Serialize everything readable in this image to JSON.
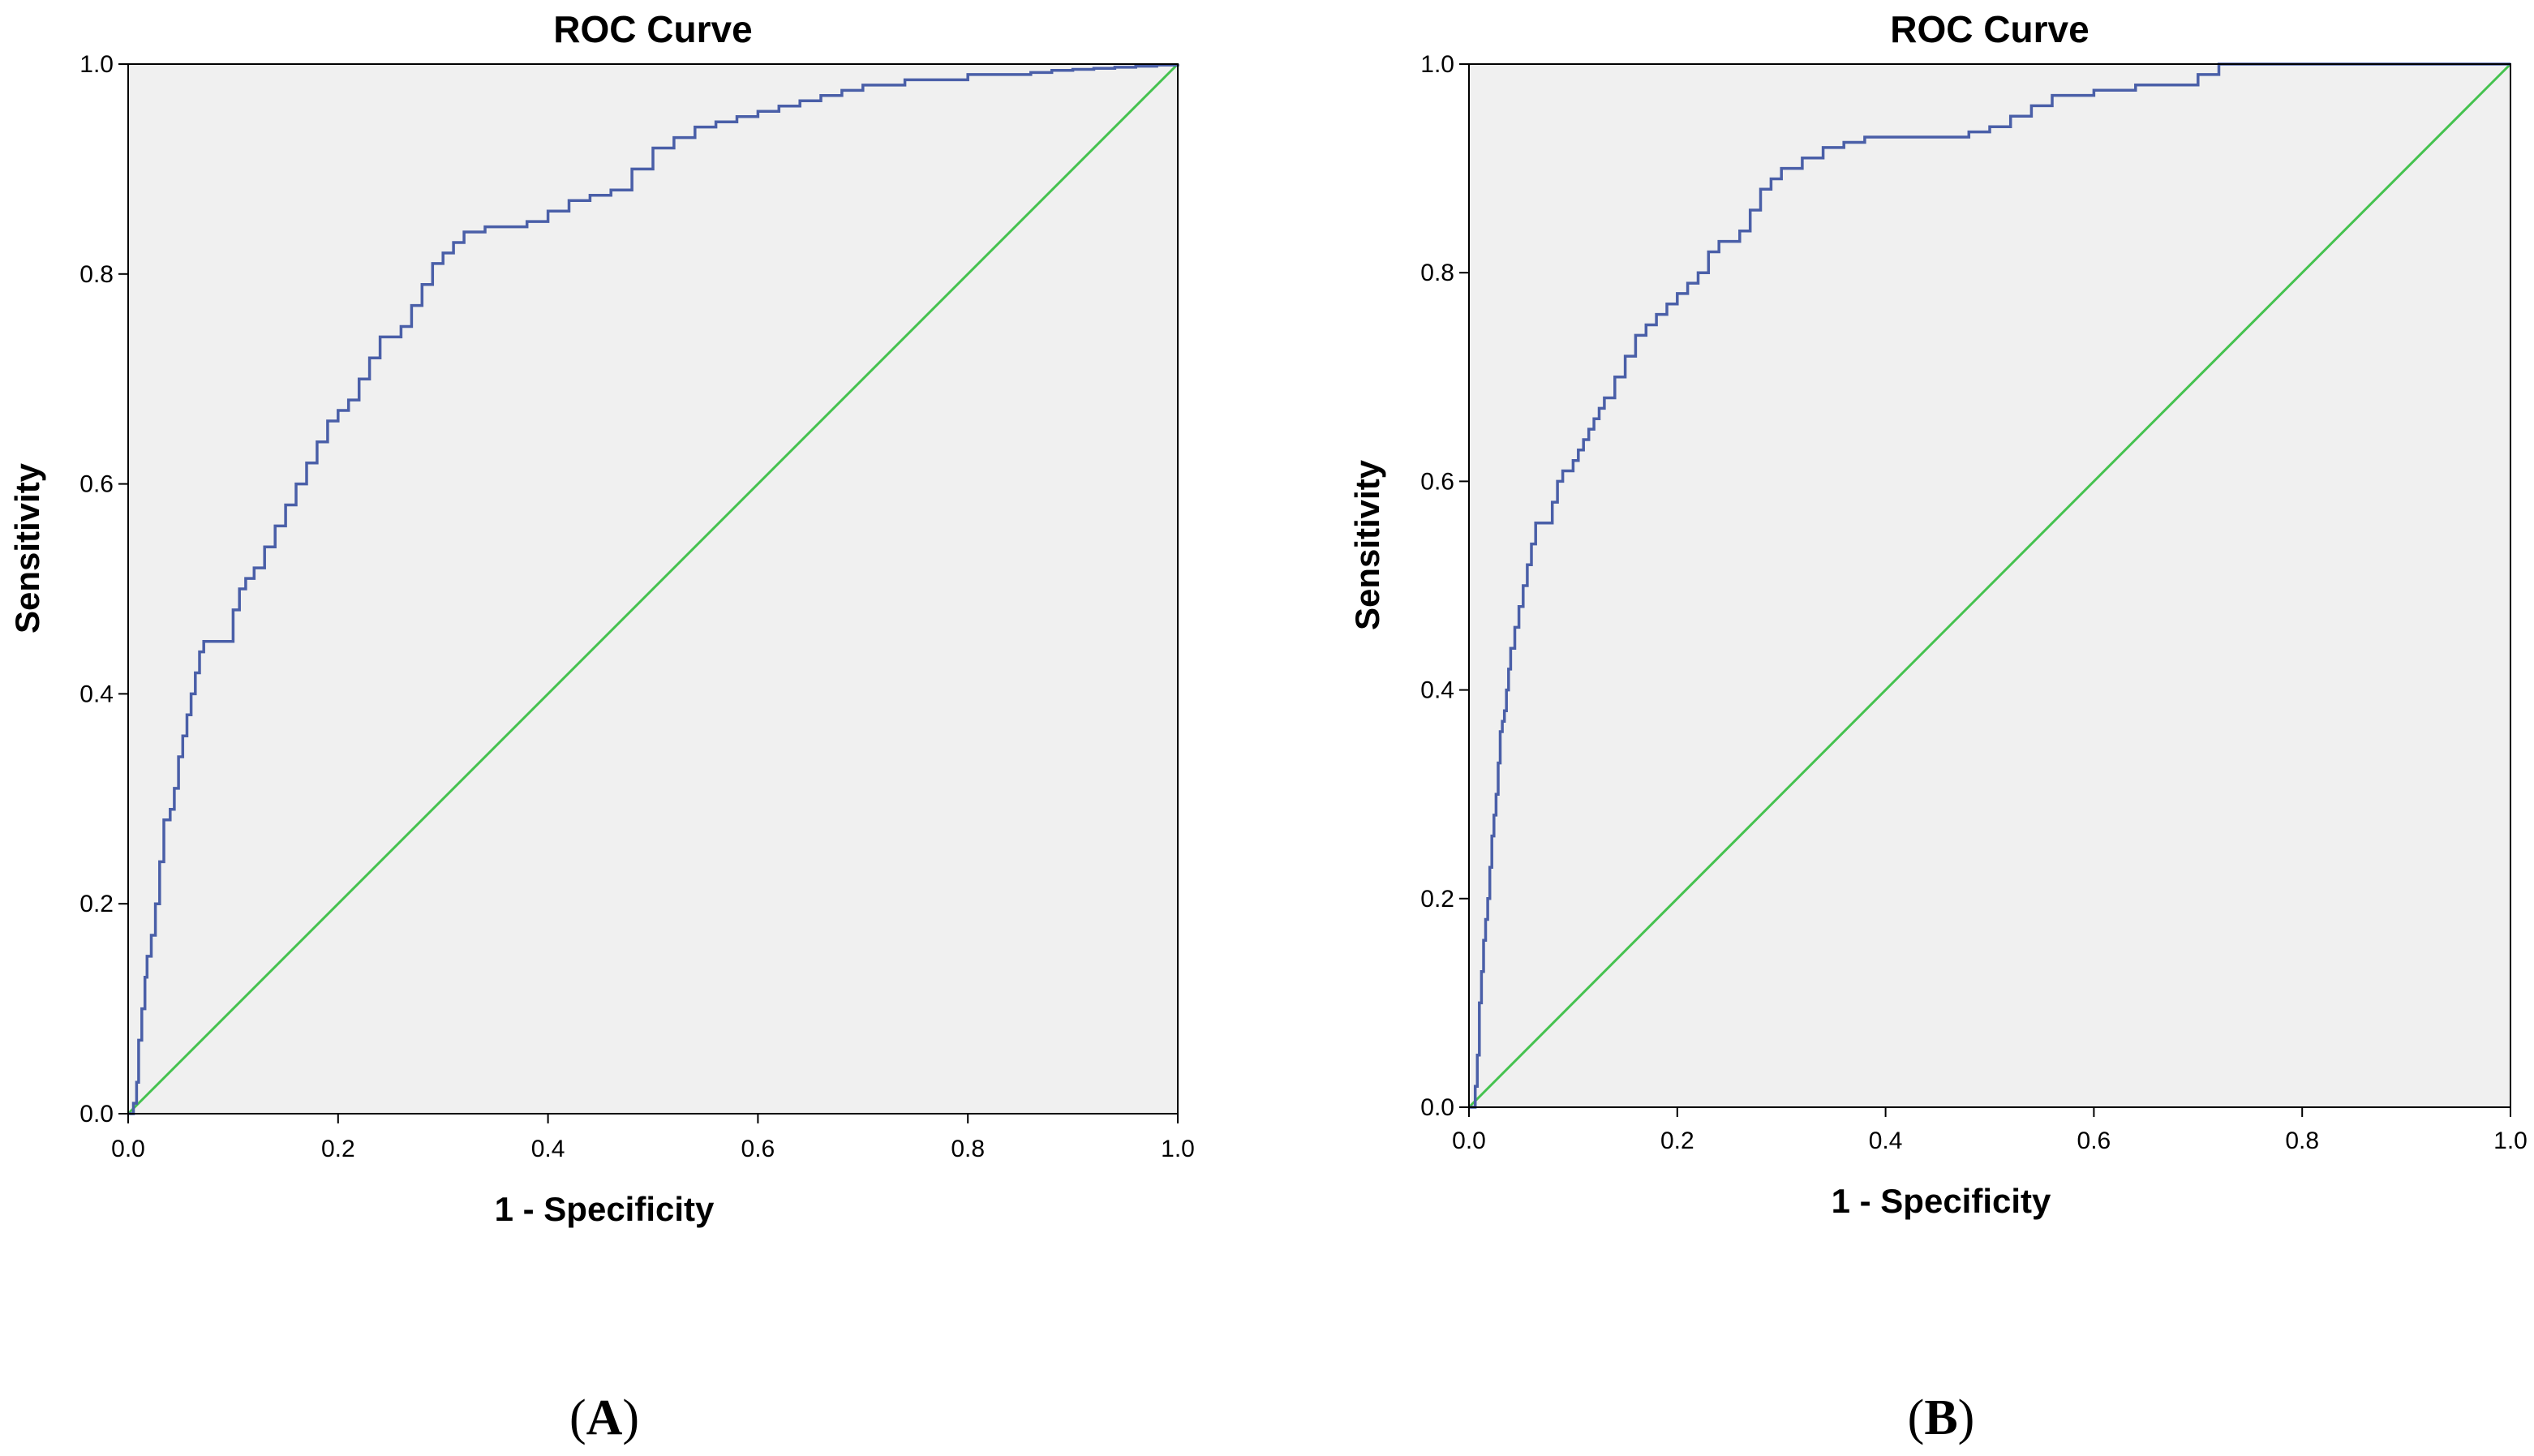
{
  "chart_data": [
    {
      "type": "line",
      "panel_label": "(A)",
      "panel_letter": "A",
      "title": "ROC Curve",
      "xlabel": "1 - Specificity",
      "ylabel": "Sensitivity",
      "xlim": [
        0,
        1
      ],
      "ylim": [
        0,
        1
      ],
      "xticks": [
        "0.0",
        "0.2",
        "0.4",
        "0.6",
        "0.8",
        "1.0"
      ],
      "yticks": [
        "0.0",
        "0.2",
        "0.4",
        "0.6",
        "0.8",
        "1.0"
      ],
      "grid": false,
      "colors": {
        "background": "#f0f0f0",
        "curve": "#4a5fa8",
        "reference": "#45c24f"
      },
      "series": [
        {
          "name": "ROC",
          "x": [
            0.0,
            0.005,
            0.008,
            0.01,
            0.013,
            0.016,
            0.018,
            0.022,
            0.026,
            0.03,
            0.034,
            0.04,
            0.044,
            0.048,
            0.052,
            0.056,
            0.06,
            0.064,
            0.068,
            0.072,
            0.076,
            0.082,
            0.09,
            0.1,
            0.106,
            0.112,
            0.12,
            0.13,
            0.14,
            0.15,
            0.16,
            0.17,
            0.18,
            0.19,
            0.2,
            0.21,
            0.22,
            0.23,
            0.24,
            0.25,
            0.26,
            0.27,
            0.28,
            0.29,
            0.3,
            0.31,
            0.32,
            0.34,
            0.36,
            0.38,
            0.4,
            0.42,
            0.44,
            0.46,
            0.48,
            0.5,
            0.52,
            0.54,
            0.56,
            0.58,
            0.6,
            0.62,
            0.64,
            0.66,
            0.68,
            0.7,
            0.72,
            0.74,
            0.76,
            0.78,
            0.8,
            0.82,
            0.84,
            0.86,
            0.88,
            0.9,
            0.92,
            0.94,
            0.96,
            0.98,
            1.0
          ],
          "y": [
            0.0,
            0.01,
            0.03,
            0.07,
            0.1,
            0.13,
            0.15,
            0.17,
            0.2,
            0.24,
            0.28,
            0.29,
            0.31,
            0.34,
            0.36,
            0.38,
            0.4,
            0.42,
            0.44,
            0.45,
            0.45,
            0.45,
            0.45,
            0.48,
            0.5,
            0.51,
            0.52,
            0.54,
            0.56,
            0.58,
            0.6,
            0.62,
            0.64,
            0.66,
            0.67,
            0.68,
            0.7,
            0.72,
            0.74,
            0.74,
            0.75,
            0.77,
            0.79,
            0.81,
            0.82,
            0.83,
            0.84,
            0.845,
            0.845,
            0.85,
            0.86,
            0.87,
            0.875,
            0.88,
            0.9,
            0.92,
            0.93,
            0.94,
            0.945,
            0.95,
            0.955,
            0.96,
            0.965,
            0.97,
            0.975,
            0.98,
            0.98,
            0.985,
            0.985,
            0.985,
            0.99,
            0.99,
            0.99,
            0.992,
            0.994,
            0.995,
            0.996,
            0.997,
            0.998,
            0.999,
            1.0
          ]
        },
        {
          "name": "Reference line",
          "x": [
            0,
            1
          ],
          "y": [
            0,
            1
          ]
        }
      ]
    },
    {
      "type": "line",
      "panel_label": "(B)",
      "panel_letter": "B",
      "title": "ROC Curve",
      "xlabel": "1 - Specificity",
      "ylabel": "Sensitivity",
      "xlim": [
        0,
        1
      ],
      "ylim": [
        0,
        1
      ],
      "xticks": [
        "0.0",
        "0.2",
        "0.4",
        "0.6",
        "0.8",
        "1.0"
      ],
      "yticks": [
        "0.0",
        "0.2",
        "0.4",
        "0.6",
        "0.8",
        "1.0"
      ],
      "grid": false,
      "colors": {
        "background": "#f0f0f0",
        "curve": "#4a5fa8",
        "reference": "#45c24f"
      },
      "series": [
        {
          "name": "ROC",
          "x": [
            0.0,
            0.006,
            0.008,
            0.01,
            0.012,
            0.014,
            0.016,
            0.018,
            0.02,
            0.022,
            0.024,
            0.026,
            0.028,
            0.03,
            0.032,
            0.034,
            0.036,
            0.038,
            0.04,
            0.044,
            0.048,
            0.052,
            0.056,
            0.06,
            0.064,
            0.068,
            0.072,
            0.076,
            0.08,
            0.085,
            0.09,
            0.1,
            0.105,
            0.11,
            0.115,
            0.12,
            0.125,
            0.13,
            0.14,
            0.15,
            0.16,
            0.17,
            0.18,
            0.19,
            0.2,
            0.21,
            0.22,
            0.23,
            0.24,
            0.25,
            0.26,
            0.27,
            0.28,
            0.29,
            0.3,
            0.32,
            0.34,
            0.36,
            0.38,
            0.4,
            0.44,
            0.48,
            0.5,
            0.52,
            0.54,
            0.56,
            0.6,
            0.64,
            0.68,
            0.7,
            0.72,
            0.8,
            0.9,
            1.0
          ],
          "y": [
            0.0,
            0.02,
            0.05,
            0.1,
            0.13,
            0.16,
            0.18,
            0.2,
            0.23,
            0.26,
            0.28,
            0.3,
            0.33,
            0.36,
            0.37,
            0.38,
            0.4,
            0.42,
            0.44,
            0.46,
            0.48,
            0.5,
            0.52,
            0.54,
            0.56,
            0.56,
            0.56,
            0.56,
            0.58,
            0.6,
            0.61,
            0.62,
            0.63,
            0.64,
            0.65,
            0.66,
            0.67,
            0.68,
            0.7,
            0.72,
            0.74,
            0.75,
            0.76,
            0.77,
            0.78,
            0.79,
            0.8,
            0.82,
            0.83,
            0.83,
            0.84,
            0.86,
            0.88,
            0.89,
            0.9,
            0.91,
            0.92,
            0.925,
            0.93,
            0.93,
            0.93,
            0.935,
            0.94,
            0.95,
            0.96,
            0.97,
            0.975,
            0.98,
            0.98,
            0.99,
            1.0,
            1.0,
            1.0,
            1.0
          ]
        },
        {
          "name": "Reference line",
          "x": [
            0,
            1
          ],
          "y": [
            0,
            1
          ]
        }
      ]
    }
  ]
}
